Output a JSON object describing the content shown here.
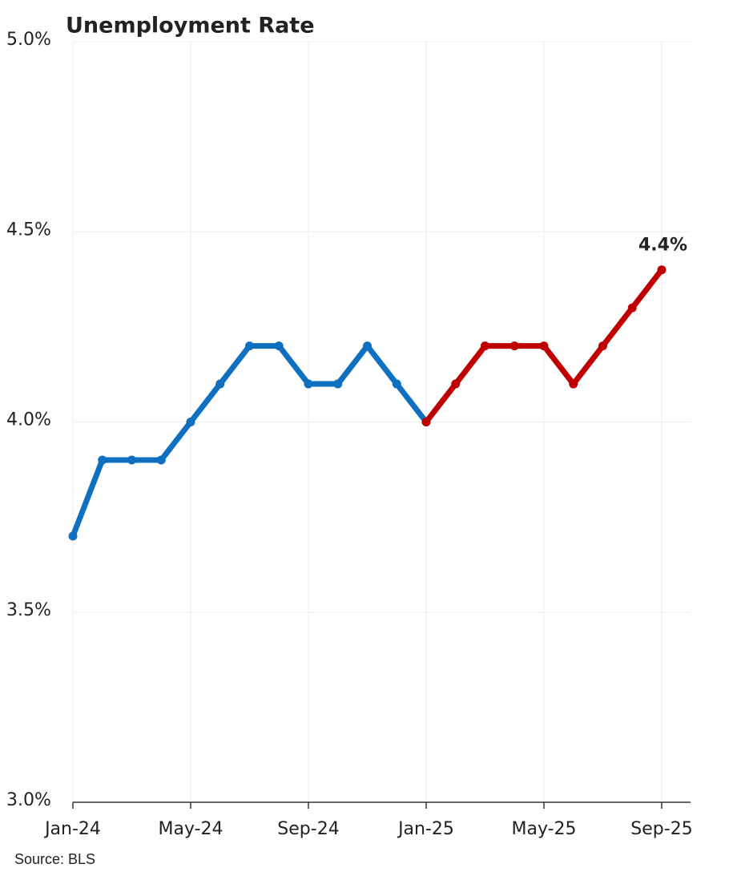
{
  "chart_data": {
    "type": "line",
    "title": "Unemployment Rate",
    "source": "Source: BLS",
    "categories": [
      "Jan-24",
      null,
      null,
      null,
      "May-24",
      null,
      null,
      null,
      "Sep-24",
      null,
      null,
      null,
      "Jan-25",
      null,
      null,
      null,
      "May-25",
      null,
      null,
      null,
      "Sep-25"
    ],
    "series": [
      {
        "color": "#0f70c0",
        "values": [
          3.7,
          3.9,
          3.9,
          3.9,
          4.0,
          4.1,
          4.2,
          4.2,
          4.1,
          4.1,
          4.2,
          4.1,
          4.0,
          null,
          null,
          null,
          null,
          null,
          null,
          null,
          null
        ]
      },
      {
        "color": "#c00000",
        "values": [
          null,
          null,
          null,
          null,
          null,
          null,
          null,
          null,
          null,
          null,
          null,
          null,
          4.0,
          4.1,
          4.2,
          4.2,
          4.2,
          4.1,
          4.2,
          4.3,
          4.4
        ],
        "value_labels": [
          null,
          null,
          null,
          null,
          null,
          null,
          null,
          null,
          null,
          null,
          null,
          null,
          null,
          null,
          null,
          null,
          null,
          null,
          null,
          null,
          "4.4%"
        ]
      }
    ],
    "ylim": [
      3.0,
      5.0
    ],
    "yticks": [
      {
        "value": 3.0,
        "label": "3.0%"
      },
      {
        "value": 3.5,
        "label": "3.5%"
      },
      {
        "value": 4.0,
        "label": "4.0%"
      },
      {
        "value": 4.5,
        "label": "4.5%"
      },
      {
        "value": 5.0,
        "label": "5.0%"
      }
    ],
    "grid": true
  }
}
